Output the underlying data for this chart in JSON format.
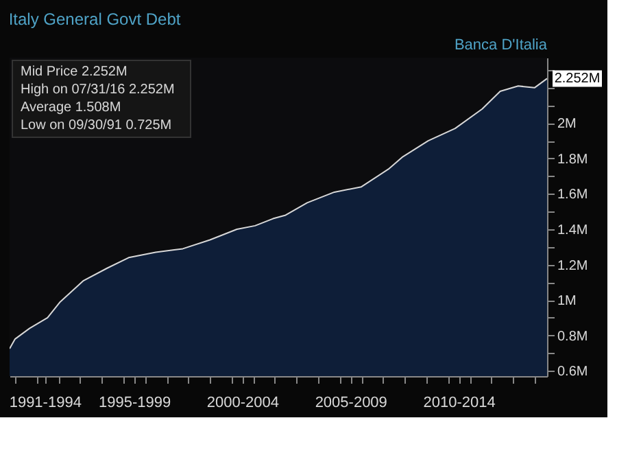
{
  "chart_data": {
    "type": "area",
    "title": "Italy General Govt Debt",
    "x": [
      "1991-09-30",
      "1992-01",
      "1992-09",
      "1993-07",
      "1994-02",
      "1995-03",
      "1996-04",
      "1997-04",
      "1998-07",
      "1999-10",
      "2001-01",
      "2002-04",
      "2003-02",
      "2003-12",
      "2004-07",
      "2005-07",
      "2006-10",
      "2008-01",
      "2009-04",
      "2009-12",
      "2011-02",
      "2012-05",
      "2013-08",
      "2014-06",
      "2015-04",
      "2016-01",
      "2016-07-31"
    ],
    "series": [
      {
        "color": "#10264a",
        "values": [
          0.725,
          0.78,
          0.84,
          0.9,
          0.99,
          1.11,
          1.18,
          1.24,
          1.27,
          1.29,
          1.34,
          1.4,
          1.42,
          1.46,
          1.48,
          1.55,
          1.61,
          1.64,
          1.74,
          1.81,
          1.9,
          1.97,
          2.08,
          2.18,
          2.21,
          2.2,
          2.252
        ]
      }
    ],
    "ylim": [
      0.57,
      2.37
    ],
    "yticks": [
      {
        "value": 0.6,
        "label": "0.6M"
      },
      {
        "value": 0.7,
        "label": null
      },
      {
        "value": 0.8,
        "label": "0.8M"
      },
      {
        "value": 0.9,
        "label": null
      },
      {
        "value": 1,
        "label": "1M"
      },
      {
        "value": 1.1,
        "label": null
      },
      {
        "value": 1.2,
        "label": "1.2M"
      },
      {
        "value": 1.3,
        "label": null
      },
      {
        "value": 1.4,
        "label": "1.4M"
      },
      {
        "value": 1.5,
        "label": null
      },
      {
        "value": 1.6,
        "label": "1.6M"
      },
      {
        "value": 1.7,
        "label": null
      },
      {
        "value": 1.8,
        "label": "1.8M"
      },
      {
        "value": 1.9,
        "label": null
      },
      {
        "value": 2,
        "label": "2M"
      },
      {
        "value": 2.1,
        "label": null
      },
      {
        "value": 2.2,
        "label": null
      },
      {
        "value": 2.3,
        "label": null
      }
    ],
    "xlim": [
      "1991-09-30",
      "2016-07-31"
    ],
    "xticks": [
      {
        "value": "1993-05-15",
        "label": "1991-1994"
      },
      {
        "value": "1997-07-01",
        "label": "1995-1999"
      },
      {
        "value": "2002-07-01",
        "label": "2000-2004"
      },
      {
        "value": "2007-07-01",
        "label": "2005-2009"
      },
      {
        "value": "2012-07-01",
        "label": "2010-2014"
      },
      {
        "value": "1992-01-01",
        "label": null
      },
      {
        "value": "1993-01-01",
        "label": null
      },
      {
        "value": "1994-01-01",
        "label": null
      },
      {
        "value": "1995-01-01",
        "label": null
      },
      {
        "value": "1996-01-01",
        "label": null
      },
      {
        "value": "1997-01-01",
        "label": null
      },
      {
        "value": "1998-01-01",
        "label": null
      },
      {
        "value": "1999-01-01",
        "label": null
      },
      {
        "value": "2000-01-01",
        "label": null
      },
      {
        "value": "2001-01-01",
        "label": null
      },
      {
        "value": "2002-01-01",
        "label": null
      },
      {
        "value": "2003-01-01",
        "label": null
      },
      {
        "value": "2004-01-01",
        "label": null
      },
      {
        "value": "2005-01-01",
        "label": null
      },
      {
        "value": "2006-01-01",
        "label": null
      },
      {
        "value": "2007-01-01",
        "label": null
      },
      {
        "value": "2008-01-01",
        "label": null
      },
      {
        "value": "2009-01-01",
        "label": null
      },
      {
        "value": "2010-01-01",
        "label": null
      },
      {
        "value": "2011-01-01",
        "label": null
      },
      {
        "value": "2012-01-01",
        "label": null
      },
      {
        "value": "2013-01-01",
        "label": null
      },
      {
        "value": "2014-01-01",
        "label": null
      },
      {
        "value": "2015-01-01",
        "label": null
      },
      {
        "value": "2016-01-01",
        "label": null
      }
    ],
    "grid": false,
    "annotations": [
      "Banca D'Italia",
      "Mid Price 2.252M",
      "High on 07/31/16 2.252M",
      "Average 1.508M",
      "Low on 09/30/91 0.725M",
      {
        "text": "2.252M",
        "x": "2016-07-31",
        "y": 2.252
      }
    ]
  }
}
